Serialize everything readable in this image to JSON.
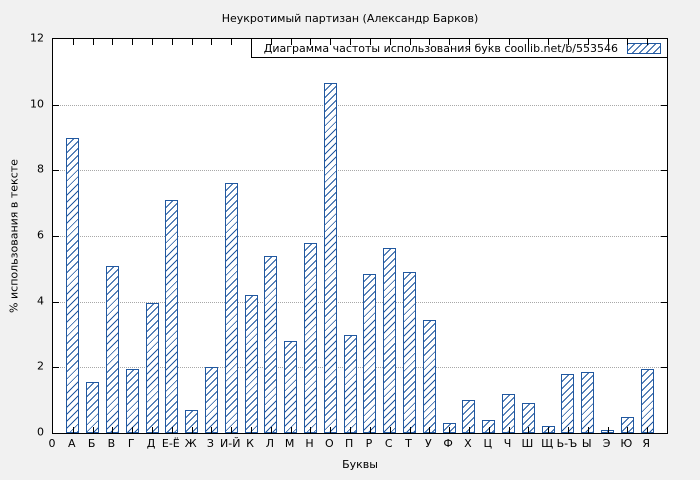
{
  "chart_data": {
    "type": "bar",
    "title": "Неукротимый партизан (Александр Барков)",
    "legend": "Диаграмма частоты использования букв  coollib.net/b/553546",
    "xlabel": "Буквы",
    "ylabel": "% использования в тексте",
    "ylim": [
      0,
      12
    ],
    "yticks": [
      0,
      2,
      4,
      6,
      8,
      10,
      12
    ],
    "origin_label": "0",
    "grid": true,
    "legend_position": "top-right",
    "bar_color": "#2158a0",
    "background_color": "#f1f1f1",
    "plot_background": "#ffffff",
    "categories": [
      "А",
      "Б",
      "В",
      "Г",
      "Д",
      "Е-Ё",
      "Ж",
      "З",
      "И-Й",
      "К",
      "Л",
      "М",
      "Н",
      "О",
      "П",
      "Р",
      "С",
      "Т",
      "У",
      "Ф",
      "Х",
      "Ц",
      "Ч",
      "Ш",
      "Щ",
      "Ь-Ъ",
      "Ы",
      "Э",
      "Ю",
      "Я"
    ],
    "values": [
      9.0,
      1.55,
      5.1,
      1.95,
      3.95,
      7.1,
      0.7,
      2.0,
      7.6,
      4.2,
      5.4,
      2.8,
      5.8,
      10.65,
      3.0,
      4.85,
      5.65,
      4.9,
      3.45,
      0.3,
      1.0,
      0.4,
      1.2,
      0.9,
      0.2,
      1.8,
      1.85,
      0.1,
      0.5,
      1.95
    ]
  }
}
